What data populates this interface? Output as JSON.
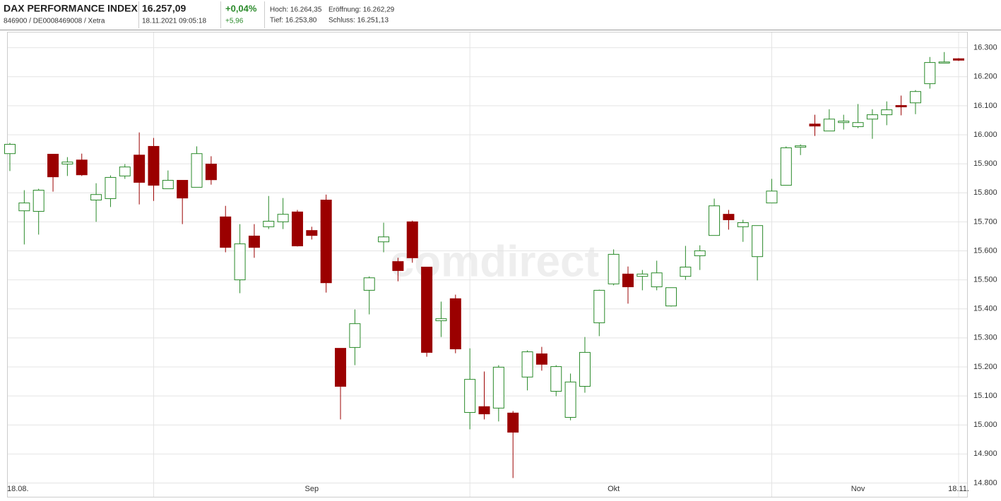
{
  "header": {
    "name": "DAX PERFORMANCE INDEX",
    "ids": "846900 / DE0008469008 / Xetra",
    "price": "16.257,09",
    "datetime": "18.11.2021 09:05:18",
    "change_pct": "+0,04%",
    "change_abs": "+5,96",
    "high": "Hoch: 16.264,35",
    "open": "Eröffnung: 16.262,29",
    "low": "Tief: 16.253,80",
    "close": "Schluss: 16.251,13"
  },
  "watermark": "comdirect",
  "chart_data": {
    "type": "candlestick",
    "categories": [
      "18.08.",
      null,
      null,
      null,
      null,
      null,
      null,
      null,
      null,
      null,
      null,
      null,
      null,
      null,
      null,
      null,
      null,
      null,
      null,
      null,
      null,
      "Sep",
      null,
      null,
      null,
      null,
      null,
      null,
      null,
      null,
      null,
      null,
      null,
      null,
      null,
      null,
      null,
      null,
      null,
      null,
      null,
      null,
      "Okt",
      null,
      null,
      null,
      null,
      null,
      null,
      null,
      null,
      null,
      null,
      null,
      null,
      null,
      null,
      null,
      null,
      "Nov",
      null,
      null,
      null,
      null,
      null,
      null,
      "18.11."
    ],
    "open": [
      15935,
      15738,
      15736,
      15933,
      15899,
      15913,
      15775,
      15780,
      15858,
      15930,
      15960,
      15814,
      15843,
      15819,
      15899,
      15717,
      15500,
      15651,
      15683,
      15700,
      15734,
      15670,
      15775,
      15264,
      15267,
      15464,
      15631,
      15563,
      15700,
      15544,
      15359,
      15435,
      15043,
      15063,
      15058,
      15041,
      15165,
      15245,
      15116,
      15026,
      15133,
      15352,
      15486,
      15520,
      15512,
      15476,
      15410,
      15512,
      15583,
      15653,
      15726,
      15683,
      15580,
      15765,
      15826,
      15957,
      16037,
      16013,
      16042,
      16028,
      16054,
      16069,
      16101,
      16110,
      16176,
      16247,
      16262
    ],
    "high": [
      15972,
      15809,
      15814,
      15933,
      15923,
      15935,
      15833,
      15860,
      15899,
      16008,
      15989,
      15877,
      15843,
      15960,
      15926,
      15755,
      15692,
      15692,
      15789,
      15782,
      15741,
      15683,
      15794,
      15264,
      15398,
      15512,
      15697,
      15576,
      15704,
      15544,
      15425,
      15449,
      15264,
      15184,
      15206,
      15048,
      15257,
      15269,
      15206,
      15177,
      15303,
      15466,
      15605,
      15546,
      15534,
      15566,
      15473,
      15617,
      15619,
      15780,
      15741,
      15707,
      15687,
      15848,
      15960,
      15967,
      16069,
      16088,
      16069,
      16106,
      16088,
      16115,
      16135,
      16154,
      16268,
      16285,
      16264
    ],
    "low": [
      15875,
      15622,
      15656,
      15804,
      15858,
      15858,
      15700,
      15751,
      15848,
      15760,
      15772,
      15814,
      15692,
      15819,
      15828,
      15595,
      15454,
      15576,
      15675,
      15675,
      15615,
      15639,
      15456,
      15019,
      15206,
      15381,
      15595,
      15495,
      15559,
      15235,
      15303,
      15247,
      14985,
      15019,
      15012,
      14817,
      15119,
      15187,
      15099,
      15016,
      15111,
      15306,
      15481,
      15418,
      15464,
      15464,
      15408,
      15500,
      15534,
      15653,
      15673,
      15631,
      15498,
      15765,
      15826,
      15930,
      15996,
      16013,
      16018,
      16023,
      15986,
      16033,
      16067,
      16071,
      16159,
      16247,
      16254
    ],
    "close": [
      15967,
      15765,
      15809,
      15855,
      15906,
      15862,
      15794,
      15853,
      15889,
      15836,
      15826,
      15843,
      15782,
      15935,
      15845,
      15612,
      15624,
      15612,
      15702,
      15726,
      15617,
      15653,
      15490,
      15133,
      15349,
      15507,
      15648,
      15532,
      15576,
      15250,
      15366,
      15262,
      15157,
      15038,
      15199,
      14975,
      15252,
      15209,
      15201,
      15148,
      15250,
      15464,
      15588,
      15476,
      15520,
      15524,
      15473,
      15544,
      15600,
      15755,
      15707,
      15697,
      15687,
      15806,
      15955,
      15962,
      16030,
      16054,
      16047,
      16042,
      16069,
      16086,
      16096,
      16149,
      16249,
      16251,
      16257
    ],
    "up_color": "#2a8a2a",
    "down_color": "#9b0000",
    "ylim": [
      14750,
      16355
    ],
    "yticks": [
      {
        "value": 14800,
        "label": "14.800"
      },
      {
        "value": 14900,
        "label": "14.900"
      },
      {
        "value": 15000,
        "label": "15.000"
      },
      {
        "value": 15100,
        "label": "15.100"
      },
      {
        "value": 15200,
        "label": "15.200"
      },
      {
        "value": 15300,
        "label": "15.300"
      },
      {
        "value": 15400,
        "label": "15.400"
      },
      {
        "value": 15500,
        "label": "15.500"
      },
      {
        "value": 15600,
        "label": "15.600"
      },
      {
        "value": 15700,
        "label": "15.700"
      },
      {
        "value": 15800,
        "label": "15.800"
      },
      {
        "value": 15900,
        "label": "15.900"
      },
      {
        "value": 16000,
        "label": "16.000"
      },
      {
        "value": 16100,
        "label": "16.100"
      },
      {
        "value": 16200,
        "label": "16.200"
      },
      {
        "value": 16300,
        "label": "16.300"
      }
    ],
    "grid": true
  }
}
